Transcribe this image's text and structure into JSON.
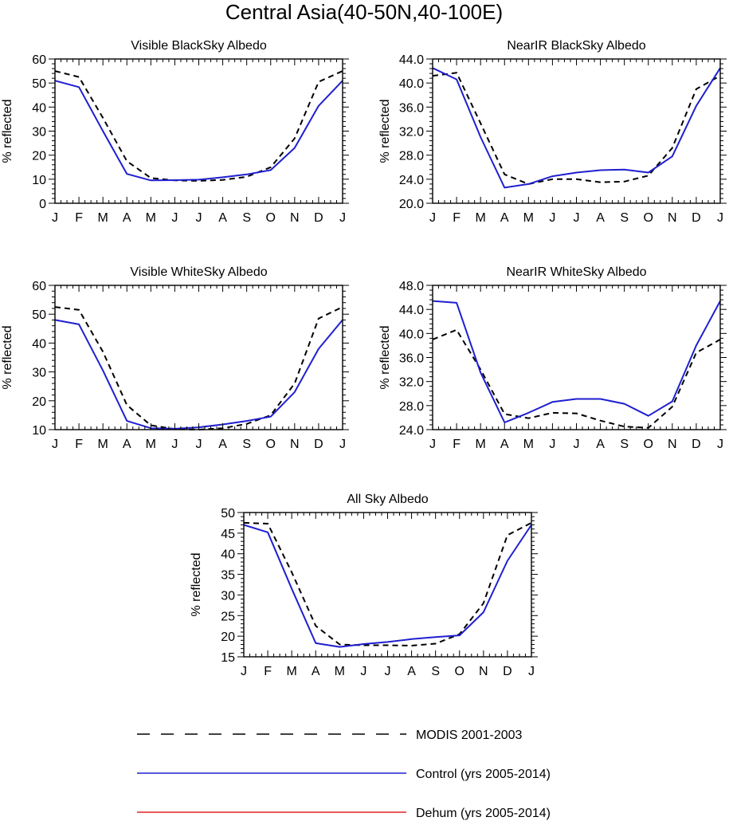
{
  "figure": {
    "title": "Central Asia(40-50N,40-100E)"
  },
  "colors": {
    "modis": "#000000",
    "control": "#1f1fd0",
    "dehum": "#e02020"
  },
  "legend": {
    "placement": "bottom-center",
    "entries": [
      {
        "label": "MODIS 2001-2003",
        "style": "dashed",
        "color": "#000000"
      },
      {
        "label": "Control (yrs 2005-2014)",
        "style": "solid",
        "color": "#1f1fd0"
      },
      {
        "label": "Dehum (yrs 2005-2014)",
        "style": "solid",
        "color": "#e02020"
      }
    ]
  },
  "chart_data": [
    {
      "type": "line",
      "title": "Visible BlackSky Albedo",
      "ylabel": "% reflected",
      "xlabel": "",
      "categories": [
        "J",
        "F",
        "M",
        "A",
        "M",
        "J",
        "J",
        "A",
        "S",
        "O",
        "N",
        "D",
        "J"
      ],
      "ylim": [
        0,
        60
      ],
      "yticks": [
        0,
        10,
        20,
        30,
        40,
        50,
        60
      ],
      "ytick_labels": [
        "0",
        "10",
        "20",
        "30",
        "40",
        "50",
        "60"
      ],
      "series": [
        {
          "name": "MODIS 2001-2003",
          "values": [
            55,
            52.5,
            35.5,
            17.5,
            10.5,
            9.5,
            9.3,
            9.7,
            11,
            15,
            27,
            50.5,
            55
          ]
        },
        {
          "name": "Control (yrs 2005-2014)",
          "values": [
            51,
            48.3,
            30,
            12.2,
            9.5,
            9.6,
            9.8,
            10.8,
            12,
            13.8,
            23,
            40.5,
            51
          ]
        }
      ]
    },
    {
      "type": "line",
      "title": "NearIR BlackSky Albedo",
      "ylabel": "% reflected",
      "xlabel": "",
      "categories": [
        "J",
        "F",
        "M",
        "A",
        "M",
        "J",
        "J",
        "A",
        "S",
        "O",
        "N",
        "D",
        "J"
      ],
      "ylim": [
        20,
        44
      ],
      "yticks": [
        20,
        24,
        28,
        32,
        36,
        40,
        44
      ],
      "ytick_labels": [
        "20.0",
        "24.0",
        "28.0",
        "32.0",
        "36.0",
        "40.0",
        "44.0"
      ],
      "series": [
        {
          "name": "MODIS 2001-2003",
          "values": [
            41.2,
            41.7,
            33.3,
            24.8,
            23.2,
            24,
            24,
            23.5,
            23.6,
            24.6,
            29.2,
            39,
            41.2
          ]
        },
        {
          "name": "Control (yrs 2005-2014)",
          "values": [
            42.5,
            40.6,
            31,
            22.6,
            23.2,
            24.5,
            25.1,
            25.5,
            25.6,
            25.1,
            27.8,
            36.2,
            42.5
          ]
        }
      ]
    },
    {
      "type": "line",
      "title": "Visible WhiteSky Albedo",
      "ylabel": "% reflected",
      "xlabel": "",
      "categories": [
        "J",
        "F",
        "M",
        "A",
        "M",
        "J",
        "J",
        "A",
        "S",
        "O",
        "N",
        "D",
        "J"
      ],
      "ylim": [
        10,
        60
      ],
      "yticks": [
        10,
        20,
        30,
        40,
        50,
        60
      ],
      "ytick_labels": [
        "10",
        "20",
        "30",
        "40",
        "50",
        "60"
      ],
      "series": [
        {
          "name": "MODIS 2001-2003",
          "values": [
            52.5,
            51.5,
            37,
            18.5,
            11.5,
            10.2,
            10,
            10.5,
            12,
            15,
            26,
            48.5,
            52.5
          ]
        },
        {
          "name": "Control (yrs 2005-2014)",
          "values": [
            48,
            46.5,
            30.5,
            13,
            10.5,
            10.3,
            10.8,
            11.8,
            13,
            14.5,
            23,
            38,
            48
          ]
        }
      ]
    },
    {
      "type": "line",
      "title": "NearIR WhiteSky Albedo",
      "ylabel": "% reflected",
      "xlabel": "",
      "categories": [
        "J",
        "F",
        "M",
        "A",
        "M",
        "J",
        "J",
        "A",
        "S",
        "O",
        "N",
        "D",
        "J"
      ],
      "ylim": [
        24,
        48
      ],
      "yticks": [
        24,
        28,
        32,
        36,
        40,
        44,
        48
      ],
      "ytick_labels": [
        "24.0",
        "28.0",
        "32.0",
        "36.0",
        "40.0",
        "44.0",
        "48.0"
      ],
      "series": [
        {
          "name": "MODIS 2001-2003",
          "values": [
            39,
            40.6,
            34,
            26.6,
            25.9,
            26.8,
            26.7,
            25.5,
            24.5,
            24.3,
            27.8,
            36.8,
            39
          ]
        },
        {
          "name": "Control (yrs 2005-2014)",
          "values": [
            45.4,
            45.1,
            33.5,
            25.2,
            26.8,
            28.6,
            29.1,
            29.1,
            28.3,
            26.3,
            28.7,
            38,
            45.4
          ]
        }
      ]
    },
    {
      "type": "line",
      "title": "All Sky Albedo",
      "ylabel": "% reflected",
      "xlabel": "",
      "categories": [
        "J",
        "F",
        "M",
        "A",
        "M",
        "J",
        "J",
        "A",
        "S",
        "O",
        "N",
        "D",
        "J"
      ],
      "ylim": [
        15,
        50
      ],
      "yticks": [
        15,
        20,
        25,
        30,
        35,
        40,
        45,
        50
      ],
      "ytick_labels": [
        "15",
        "20",
        "25",
        "30",
        "35",
        "40",
        "45",
        "50"
      ],
      "series": [
        {
          "name": "MODIS 2001-2003",
          "values": [
            47.5,
            47.3,
            35.5,
            22.5,
            18,
            17.8,
            17.8,
            17.7,
            18.2,
            20.5,
            28,
            44.5,
            47.5
          ]
        },
        {
          "name": "Control (yrs 2005-2014)",
          "values": [
            47,
            45.2,
            31.5,
            18.3,
            17.4,
            18.1,
            18.6,
            19.3,
            19.8,
            20.2,
            25.8,
            38.3,
            47
          ]
        }
      ]
    }
  ]
}
